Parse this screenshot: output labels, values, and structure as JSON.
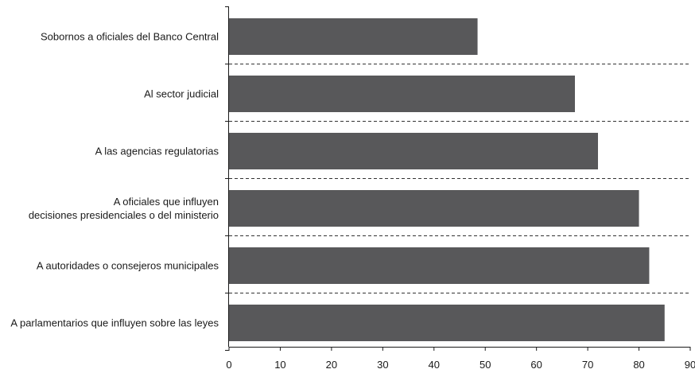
{
  "chart_data": {
    "type": "bar",
    "orientation": "horizontal",
    "categories": [
      [
        "Sobornos a oficiales del Banco Central"
      ],
      [
        "Al sector judicial"
      ],
      [
        "A las agencias regulatorias"
      ],
      [
        "A oficiales que influyen",
        "decisiones presidenciales o del ministerio"
      ],
      [
        "A autoridades o consejeros municipales"
      ],
      [
        "A parlamentarios que influyen sobre las leyes"
      ]
    ],
    "values": [
      48.5,
      67.5,
      72,
      80,
      82,
      85
    ],
    "xlim": [
      0,
      90
    ],
    "xticks": [
      "0",
      "10",
      "20",
      "30",
      "40",
      "50",
      "60",
      "70",
      "80",
      "90"
    ],
    "title": "",
    "xlabel": "",
    "ylabel": "",
    "bar_color": "#58585a",
    "separator": "dashed",
    "legend": "none"
  }
}
